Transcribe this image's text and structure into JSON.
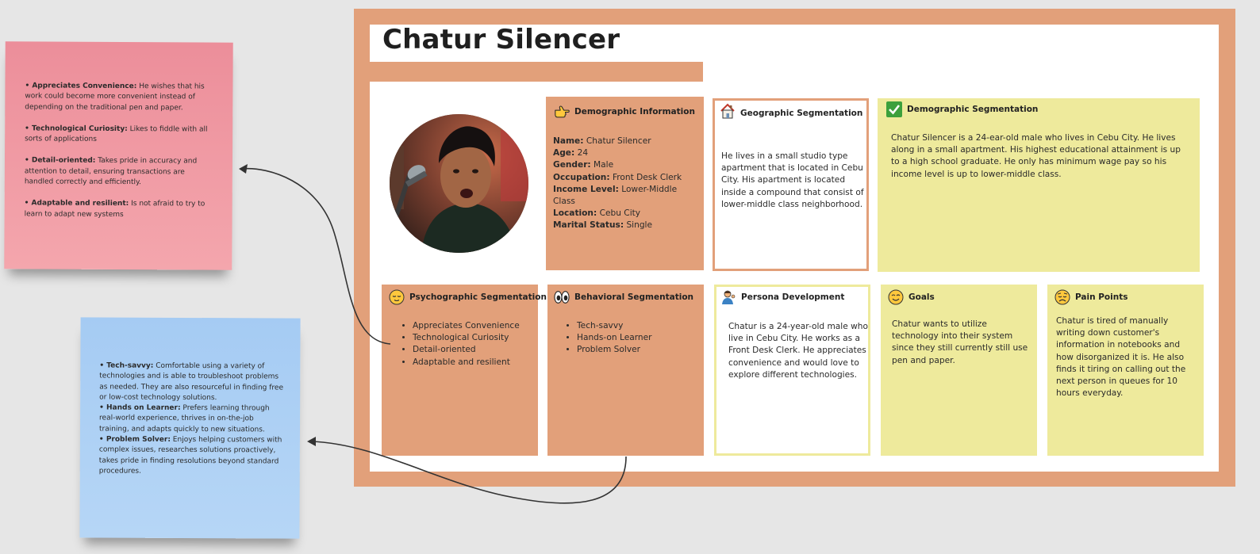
{
  "title": "Chatur Silencer",
  "sticky_pink": [
    {
      "term": "• Appreciates Convenience:",
      "text": " He wishes that his work could become more convenient instead of depending on the traditional pen and paper."
    },
    {
      "term": "• Technological Curiosity:",
      "text": " Likes to fiddle with all sorts of applications"
    },
    {
      "term": "• Detail-oriented:",
      "text": " Takes pride in accuracy and attention to detail, ensuring transactions are handled correctly and efficiently."
    },
    {
      "term": "• Adaptable and resilient:",
      "text": " Is not afraid to try to learn to adapt new systems"
    }
  ],
  "sticky_blue": [
    {
      "term": "• Tech-savvy:",
      "text": " Comfortable using a variety of technologies and is able to troubleshoot problems as needed. They are also resourceful in finding free or low-cost technology solutions."
    },
    {
      "term": "• Hands on Learner:",
      "text": " Prefers learning through real-world experience, thrives in on-the-job training, and adapts quickly to new situations."
    },
    {
      "term": "• Problem Solver:",
      "text": " Enjoys helping customers with complex issues, researches solutions proactively, takes pride in finding resolutions beyond standard procedures."
    }
  ],
  "demographic_info": {
    "title": "Demographic Information",
    "icon": "pointing-hand-icon",
    "rows": [
      {
        "label": "Name:",
        "value": " Chatur Silencer"
      },
      {
        "label": "Age:",
        "value": " 24"
      },
      {
        "label": "Gender:",
        "value": " Male"
      },
      {
        "label": "Occupation:",
        "value": " Front Desk Clerk"
      },
      {
        "label": "Income Level:",
        "value": " Lower-Middle Class"
      },
      {
        "label": "Location:",
        "value": " Cebu City"
      },
      {
        "label": "Marital Status:",
        "value": " Single"
      }
    ]
  },
  "geographic": {
    "title": "Geographic Segmentation",
    "icon": "house-icon",
    "text": "He lives in a small studio type apartment that is located in Cebu City. His apartment is located inside a compound that consist of lower-middle class neighborhood."
  },
  "demographic_seg": {
    "title": "Demographic Segmentation",
    "icon": "check-box-icon",
    "text": "Chatur Silencer is a 24-ear-old male who lives in Cebu City. He lives along in a small apartment. His highest educational attainment is up to a high school graduate. He only has minimum wage pay so his income level is up to lower-middle class."
  },
  "psychographic": {
    "title": "Psychographic Segmentation:",
    "icon": "relieved-face-icon",
    "items": [
      "Appreciates Convenience",
      "Technological Curiosity",
      "Detail-oriented",
      "Adaptable and resilient"
    ]
  },
  "behavioral": {
    "title": "Behavioral Segmentation",
    "icon": "eyes-icon",
    "items": [
      "Tech-savvy",
      "Hands-on Learner",
      "Problem Solver"
    ]
  },
  "persona_dev": {
    "title": "Persona Development",
    "icon": "person-icon",
    "text": "Chatur is a 24-year-old male who live in Cebu City. He works as a Front Desk Clerk. He appreciates convenience and would love to explore different technologies."
  },
  "goals": {
    "title": "Goals",
    "icon": "smiling-face-icon",
    "text": "Chatur wants to utilize technology into their system since they still currently still use pen and paper."
  },
  "pain_points": {
    "title": "Pain Points",
    "icon": "worried-face-icon",
    "text": "Chatur is tired of manually writing down customer's information in notebooks and how disorganized it is. He also finds it tiring on calling out the next person in queues for 10 hours everyday."
  },
  "colors": {
    "board": "#e2a07a",
    "yellow": "#eeea9c",
    "sticky_pink": "#f09aa3",
    "sticky_blue": "#aed0f5"
  }
}
